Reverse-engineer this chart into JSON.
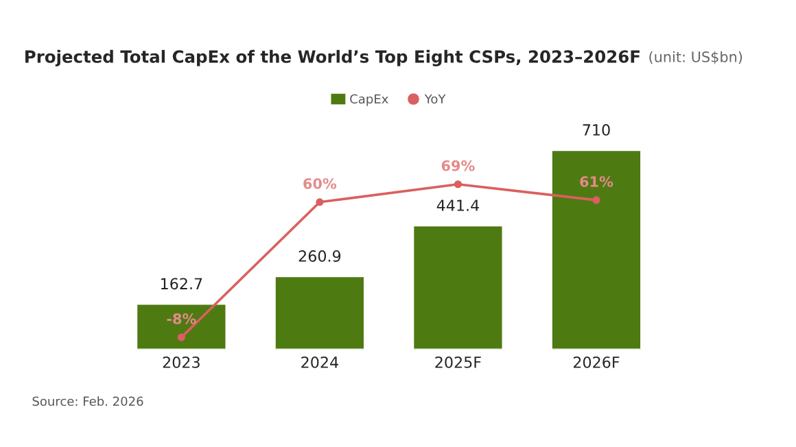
{
  "chart_data": {
    "type": "bar",
    "title": "Projected Total CapEx of the World’s Top Eight CSPs, 2023–2026F",
    "subtitle": "(unit: US$bn)",
    "categories": [
      "2023",
      "2024",
      "2025F",
      "2026F"
    ],
    "series": [
      {
        "name": "CapEx",
        "color": "#4e7a12",
        "values": [
          162.7,
          260.9,
          441.4,
          710
        ]
      },
      {
        "name": "YoY",
        "type": "line",
        "axis": "y2",
        "color": "#d9605f",
        "values": [
          -8,
          60,
          69,
          61
        ],
        "value_labels": [
          "-8%",
          "60%",
          "69%",
          "61%"
        ]
      }
    ],
    "tick_labels": "x",
    "grid": false,
    "legend": "top",
    "marker": "circle",
    "data_labels": true,
    "annotations": [
      "Source: Feb. 2026"
    ]
  }
}
